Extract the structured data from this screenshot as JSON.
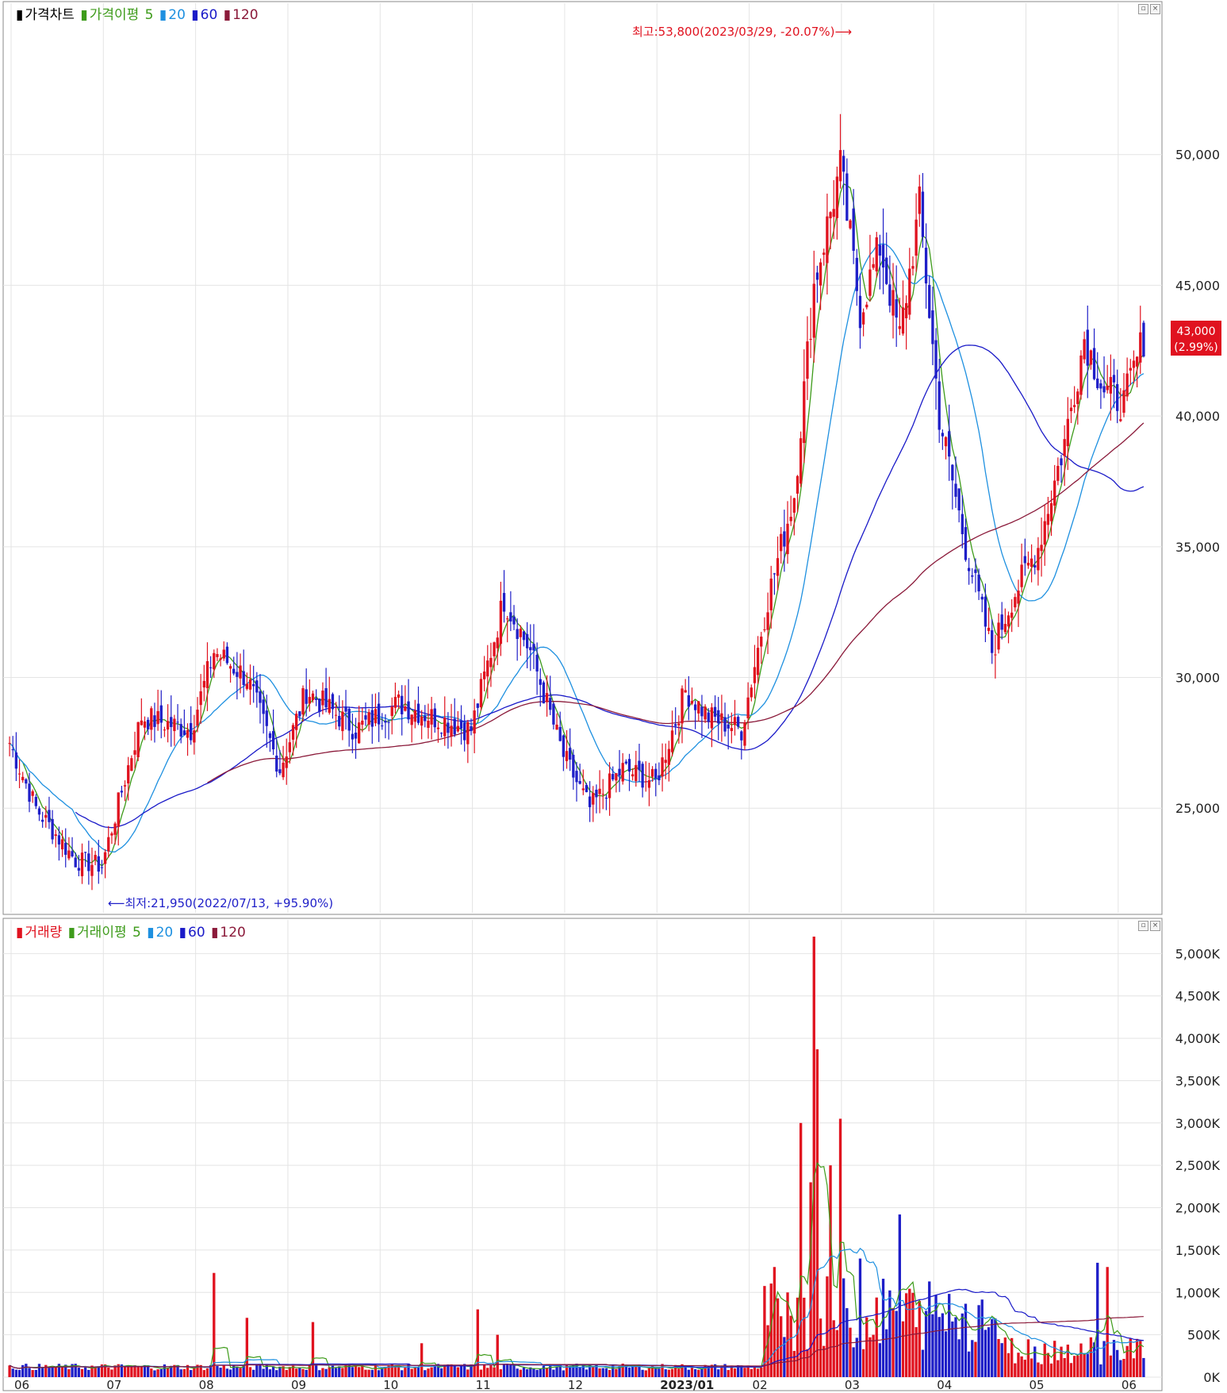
{
  "price_panel": {
    "legend": {
      "title": "가격차트",
      "ma_label": "가격이평",
      "ma_periods": [
        "5",
        "20",
        "60",
        "120"
      ],
      "colors": {
        "title": "#000000",
        "ma5": "#3d9b1a",
        "ma20": "#1e90e0",
        "ma60": "#1a1ac8",
        "ma120": "#8b1a3a"
      }
    },
    "y_ticks": [
      "25,000",
      "30,000",
      "35,000",
      "40,000",
      "45,000",
      "50,000"
    ],
    "y_tick_values": [
      25000,
      30000,
      35000,
      40000,
      45000,
      50000
    ],
    "current_price_label": "43,000",
    "current_change_label": "(2.99%)",
    "high_annotation": "최고:53,800(2023/03/29, -20.07%)⟶",
    "low_annotation": "⟵최저:21,950(2022/07/13, +95.90%)"
  },
  "volume_panel": {
    "legend": {
      "title": "거래량",
      "ma_label": "거래이평",
      "ma_periods": [
        "5",
        "20",
        "60",
        "120"
      ]
    },
    "y_ticks": [
      "0K",
      "500K",
      "1,000K",
      "1,500K",
      "2,000K",
      "2,500K",
      "3,000K",
      "3,500K",
      "4,000K",
      "4,500K",
      "5,000K"
    ]
  },
  "x_labels": [
    "06",
    "07",
    "08",
    "09",
    "10",
    "11",
    "12",
    "2023/01",
    "02",
    "03",
    "04",
    "05",
    "06"
  ],
  "colors": {
    "up": "#e0121f",
    "down": "#1f1fc8",
    "grid": "#e4e4e4",
    "axis": "#555555"
  },
  "chart_data": [
    {
      "type": "candlestick",
      "title": "가격차트",
      "xlabel": "",
      "ylabel": "",
      "ylim": [
        21000,
        55000
      ],
      "x_range": [
        "2022/06",
        "2023/06"
      ],
      "monthly_series": {
        "x": [
          "2022/06",
          "2022/07",
          "2022/08",
          "2022/09",
          "2022/10",
          "2022/11",
          "2022/12",
          "2023/01",
          "2023/02",
          "2023/03",
          "2023/04",
          "2023/05",
          "2023/06"
        ],
        "approx_close": [
          27500,
          23000,
          28000,
          30500,
          28500,
          28500,
          31500,
          26500,
          28500,
          46000,
          42000,
          31500,
          42000
        ]
      },
      "annotations": [
        {
          "label": "최고",
          "value": 53800,
          "date": "2023/03/29",
          "change": "-20.07%"
        },
        {
          "label": "최저",
          "value": 21950,
          "date": "2022/07/13",
          "change": "+95.90%"
        }
      ],
      "last": {
        "close": 43000,
        "change": "2.99%"
      },
      "moving_averages": [
        "5",
        "20",
        "60",
        "120"
      ],
      "grid": true
    },
    {
      "type": "bar",
      "title": "거래량",
      "xlabel": "",
      "ylabel": "",
      "ylim": [
        0,
        5200
      ],
      "unit": "K",
      "peaks": [
        {
          "x": "2022/09",
          "value": 1230
        },
        {
          "x": "2022/12",
          "value": 780
        },
        {
          "x": "2023/03",
          "value": 3000
        },
        {
          "x": "2023/03",
          "value": 5200
        },
        {
          "x": "2023/03",
          "value": 3870
        },
        {
          "x": "2023/04",
          "value": 3050
        },
        {
          "x": "2023/04",
          "value": 1920
        },
        {
          "x": "2023/06",
          "value": 1350
        }
      ],
      "moving_averages": [
        "5",
        "20",
        "60",
        "120"
      ],
      "grid": true
    }
  ]
}
